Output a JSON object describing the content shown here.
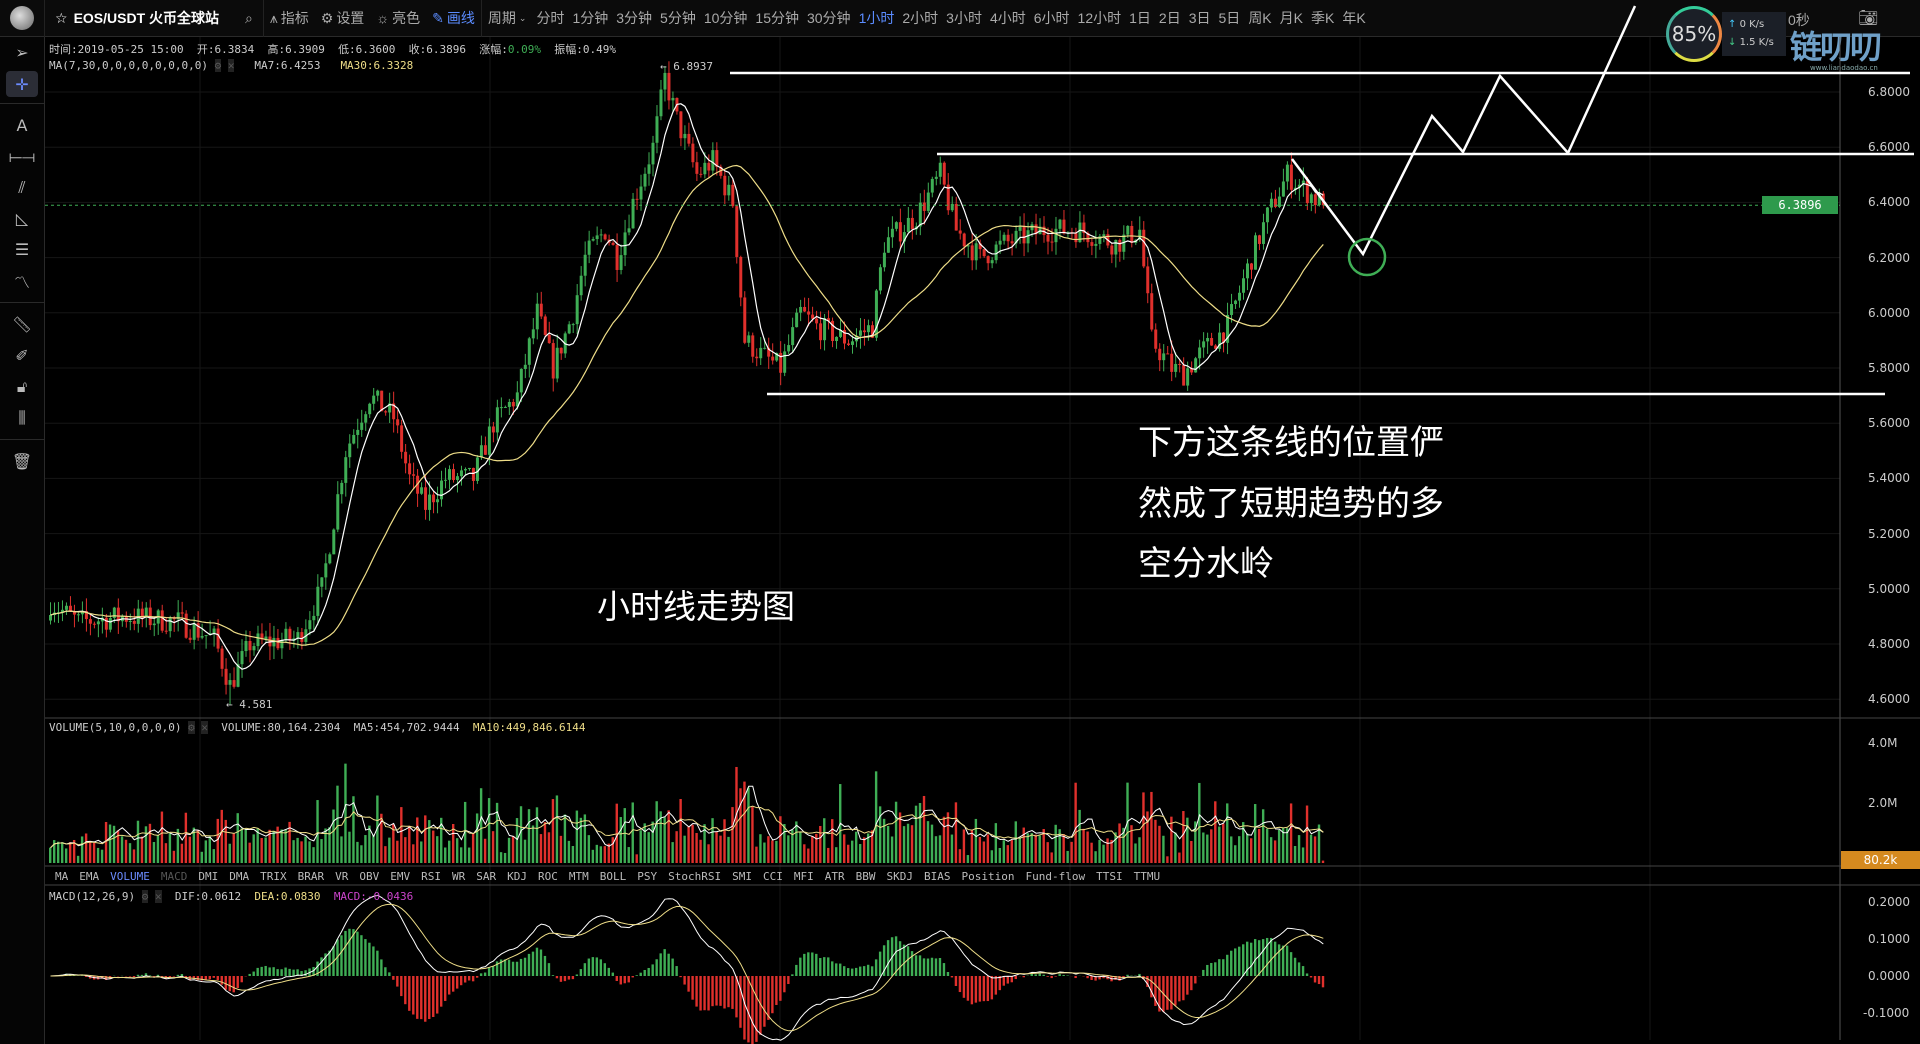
{
  "topbar": {
    "symbol": "EOS/USDT 火币全球站",
    "tools": [
      {
        "label": "指标",
        "icon": "indicator-icon"
      },
      {
        "label": "设置",
        "icon": "gear-icon"
      },
      {
        "label": "亮色",
        "icon": "sun-icon"
      },
      {
        "label": "画线",
        "icon": "pen-icon"
      }
    ],
    "period_label": "周期",
    "periods": [
      "分时",
      "1分钟",
      "3分钟",
      "5分钟",
      "10分钟",
      "15分钟",
      "30分钟",
      "1小时",
      "2小时",
      "3小时",
      "4小时",
      "6小时",
      "12小时",
      "1日",
      "2日",
      "3日",
      "5日",
      "周K",
      "月K",
      "季K",
      "年K"
    ],
    "active_period": "1小时",
    "timer": "0秒",
    "cpu": "85%",
    "net_up": "0 K/s",
    "net_down": "1.5 K/s",
    "watermark": "链叨叨",
    "watermark_url": "www.liandaodao.cn"
  },
  "info": {
    "time": "时间:2019-05-25 15:00",
    "open": "开:6.3834",
    "high": "高:6.3909",
    "low": "低:6.3600",
    "close": "收:6.3896",
    "change_label": "涨幅:",
    "change": "0.09%",
    "amplitude": "振幅:0.49%",
    "ma_params": "MA(7,30,0,0,0,0,0,0,0,0)",
    "ma7": "MA7:6.4253",
    "ma30": "MA30:6.3328"
  },
  "volume_info": {
    "params": "VOLUME(5,10,0,0,0,0)",
    "volume": "VOLUME:80,164.2304",
    "ma5": "MA5:454,702.9444",
    "ma10": "MA10:449,846.6144"
  },
  "macd_info": {
    "params": "MACD(12,26,9)",
    "dif": "DIF:0.0612",
    "dea": "DEA:0.0830",
    "macd": "MACD:-0.0436"
  },
  "indicator_tabs": [
    "MA",
    "EMA",
    "VOLUME",
    "MACD",
    "DMI",
    "DMA",
    "TRIX",
    "BRAR",
    "VR",
    "OBV",
    "EMV",
    "RSI",
    "WR",
    "SAR",
    "KDJ",
    "ROC",
    "MTM",
    "BOLL",
    "PSY",
    "StochRSI",
    "SMI",
    "CCI",
    "MFI",
    "ATR",
    "BBW",
    "SKDJ",
    "BIAS",
    "Position",
    "Fund-flow",
    "TTSI",
    "TTMU"
  ],
  "active_indicator": "VOLUME",
  "price_axis": [
    "6.8000",
    "6.6000",
    "6.4000",
    "6.2000",
    "6.0000",
    "5.8000",
    "5.6000",
    "5.4000",
    "5.2000",
    "5.0000",
    "4.8000",
    "4.6000"
  ],
  "current_price": "6.3896",
  "max_label": "← 6.8937",
  "min_label": "← 4.581",
  "volume_axis": [
    "4.0M",
    "2.0M"
  ],
  "current_volume": "80.2k",
  "macd_axis": [
    "0.2000",
    "0.1000",
    "0.0000",
    "-0.1000"
  ],
  "annotations": {
    "title": "小时线走势图",
    "note": [
      "下方这条线的位置俨然成了短期趋势的多",
      "然成了短期趋势的多",
      "空分水岭"
    ]
  },
  "colors": {
    "up": "#3fae55",
    "down": "#e0302c",
    "ma7": "#ffffff",
    "ma30": "#eedd88",
    "accent": "#5b8cff"
  },
  "chart_data": {
    "type": "candlestick",
    "interval": "1小时",
    "candles": 320,
    "close_keypoints": [
      [
        0,
        4.95
      ],
      [
        7,
        4.88
      ],
      [
        19,
        4.9
      ],
      [
        32,
        4.88
      ],
      [
        41,
        4.82
      ],
      [
        45,
        4.65
      ],
      [
        50,
        4.8
      ],
      [
        62,
        4.82
      ],
      [
        68,
        5.0
      ],
      [
        74,
        5.5
      ],
      [
        80,
        5.7
      ],
      [
        86,
        5.62
      ],
      [
        90,
        5.4
      ],
      [
        94,
        5.3
      ],
      [
        99,
        5.4
      ],
      [
        106,
        5.4
      ],
      [
        111,
        5.6
      ],
      [
        117,
        5.7
      ],
      [
        122,
        6.0
      ],
      [
        126,
        5.8
      ],
      [
        131,
        6.0
      ],
      [
        134,
        6.2
      ],
      [
        139,
        6.3
      ],
      [
        142,
        6.2
      ],
      [
        146,
        6.4
      ],
      [
        151,
        6.6
      ],
      [
        154,
        6.85
      ],
      [
        157,
        6.7
      ],
      [
        162,
        6.5
      ],
      [
        166,
        6.55
      ],
      [
        171,
        6.4
      ],
      [
        174,
        5.9
      ],
      [
        178,
        5.85
      ],
      [
        183,
        5.8
      ],
      [
        188,
        6.0
      ],
      [
        192,
        5.95
      ],
      [
        200,
        5.9
      ],
      [
        206,
        5.95
      ],
      [
        209,
        6.25
      ],
      [
        217,
        6.35
      ],
      [
        223,
        6.5
      ],
      [
        227,
        6.3
      ],
      [
        233,
        6.2
      ],
      [
        239,
        6.25
      ],
      [
        249,
        6.3
      ],
      [
        258,
        6.3
      ],
      [
        267,
        6.25
      ],
      [
        273,
        6.3
      ],
      [
        276,
        5.9
      ],
      [
        281,
        5.8
      ],
      [
        284,
        5.78
      ],
      [
        288,
        5.85
      ],
      [
        295,
        5.95
      ],
      [
        301,
        6.2
      ],
      [
        305,
        6.35
      ],
      [
        310,
        6.5
      ],
      [
        314,
        6.45
      ],
      [
        319,
        6.3896
      ]
    ],
    "high": 6.8937,
    "low": 4.581,
    "price_range": [
      4.5,
      7.0
    ],
    "volume_range_M": [
      0,
      4.5
    ],
    "macd_range": [
      -0.15,
      0.22
    ],
    "drawn_levels": [
      6.87,
      6.575,
      5.706
    ]
  }
}
